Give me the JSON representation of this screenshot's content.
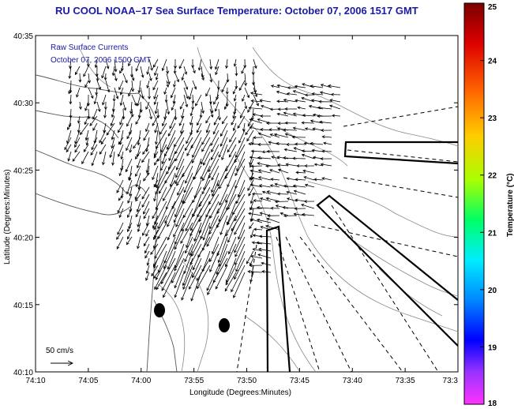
{
  "title": "RU COOL  NOAA–17  Sea Surface Temperature:  October 07, 2006 1517 GMT",
  "overlay": {
    "line1": "Raw Surface Currents",
    "line2": "October 07, 2006 1500 GMT"
  },
  "scale": {
    "label": "50 cm/s"
  },
  "axes": {
    "xlabel": "Longitude (Degrees:Minutes)",
    "ylabel": "Latitude (Degrees:Minutes)",
    "xticks": [
      "74:10",
      "74:05",
      "74:00",
      "73:55",
      "73:50",
      "73:45",
      "73:40",
      "73:35",
      "73:3"
    ],
    "yticks": [
      "40:35",
      "40:30",
      "40:25",
      "40:20",
      "40:15",
      "40:10"
    ]
  },
  "colorbar": {
    "label": "Temperature (°C)",
    "ticks": [
      "25",
      "24",
      "23",
      "22",
      "21",
      "20",
      "19",
      "18"
    ],
    "min": 18,
    "max": 25
  }
}
